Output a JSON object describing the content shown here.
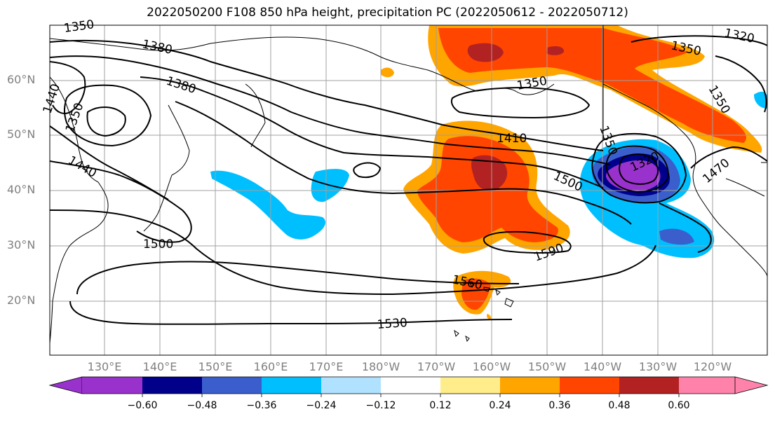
{
  "title": "2022050200 F108 850 hPa height, precipitation PC (2022050612 - 2022050712)",
  "lat_labels": [
    "60°N",
    "50°N",
    "40°N",
    "30°N",
    "20°N"
  ],
  "lon_labels": [
    "130°E",
    "140°E",
    "150°E",
    "160°E",
    "170°E",
    "180°W",
    "170°W",
    "160°W",
    "150°W",
    "140°W",
    "130°W",
    "120°W"
  ],
  "contour_labels": [
    "1350",
    "1380",
    "1380",
    "1440",
    "1350",
    "1440",
    "1500",
    "1410",
    "1500",
    "1590",
    "1560",
    "1530",
    "1350",
    "1350",
    "1320",
    "1350",
    "1320",
    "1470",
    "1350"
  ],
  "colorbar": {
    "ticks": [
      "−0.60",
      "−0.48",
      "−0.36",
      "−0.24",
      "−0.12",
      "0.12",
      "0.24",
      "0.36",
      "0.48",
      "0.60"
    ],
    "colors": [
      "#9932cc",
      "#00008b",
      "#3a5fcd",
      "#00bfff",
      "#b0e2ff",
      "#ffffff",
      "#ffec8b",
      "#ffa500",
      "#ff4500",
      "#b22222",
      "#ff82ab"
    ]
  }
}
